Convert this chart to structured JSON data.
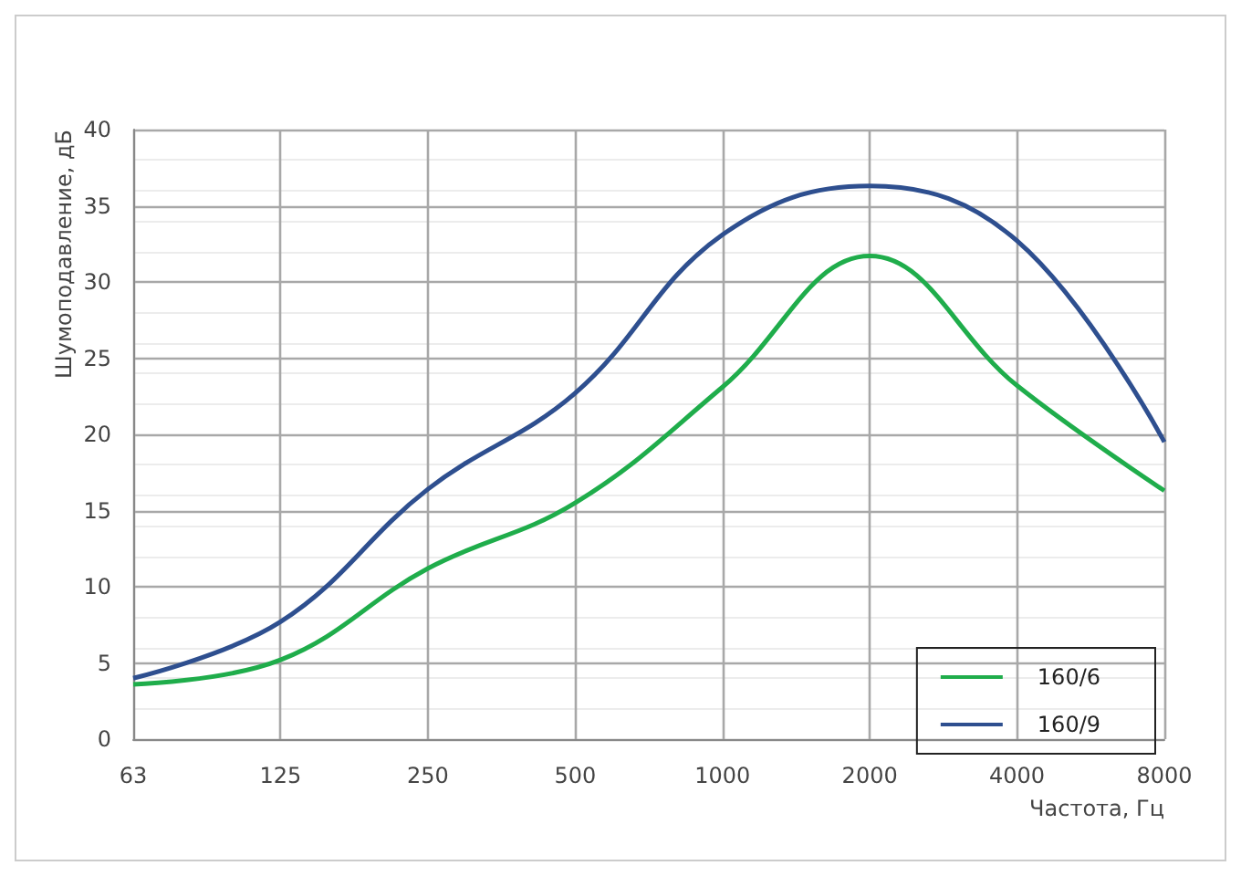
{
  "chart_data": {
    "type": "line",
    "xlabel": "Частота, Гц",
    "ylabel": "Шумоподавление, дБ",
    "categories": [
      "63",
      "125",
      "250",
      "500",
      "1000",
      "2000",
      "4000",
      "8000"
    ],
    "series": [
      {
        "name": "160/6",
        "color": "#1fad4b",
        "values": [
          3.6,
          5.2,
          11.2,
          15.5,
          23.1,
          31.7,
          23.2,
          16.3
        ]
      },
      {
        "name": "160/9",
        "color": "#2e4f8f",
        "values": [
          4.0,
          7.7,
          16.4,
          22.7,
          33.1,
          36.3,
          32.7,
          19.5
        ]
      }
    ],
    "ylim": [
      0,
      40
    ],
    "yticks": [
      0,
      5,
      10,
      15,
      20,
      25,
      30,
      35,
      40
    ],
    "grid": true,
    "legend": "bottom right",
    "marker": "none",
    "line_style": "solid"
  }
}
